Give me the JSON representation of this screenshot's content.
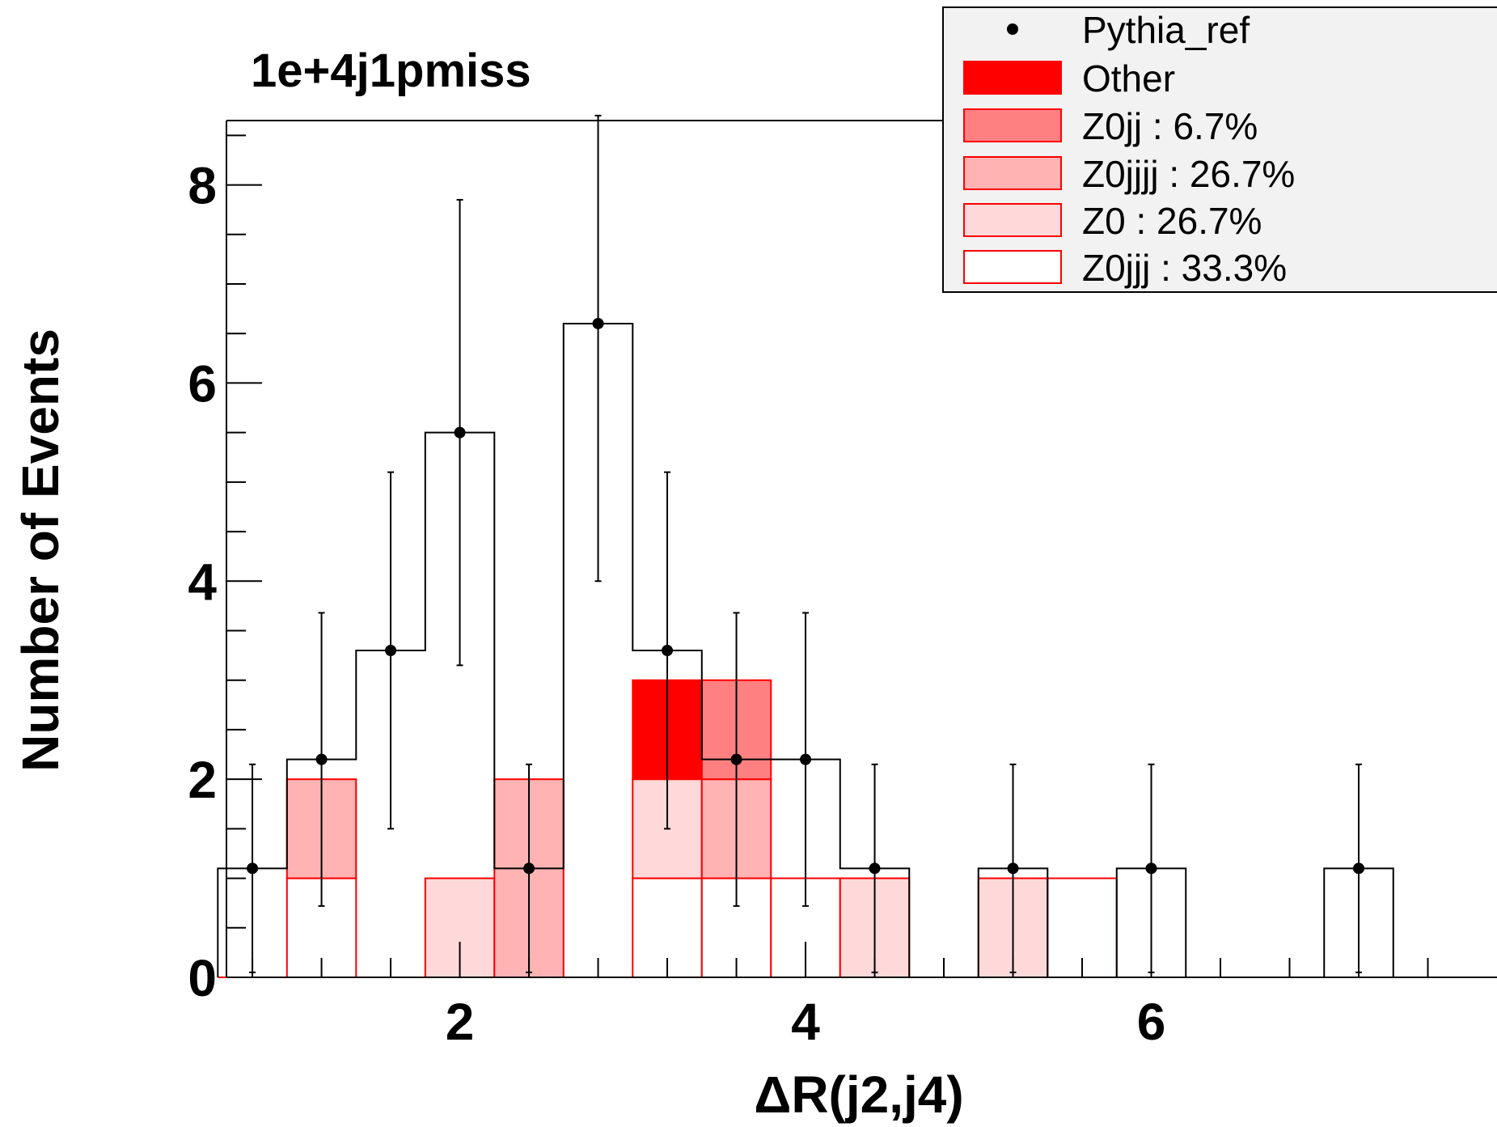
{
  "chart_data": {
    "type": "bar",
    "title": "1e+4j1pmiss",
    "xlabel": "ΔR(j2,j4)",
    "ylabel": "Number of Events",
    "xlim": [
      0.65,
      8.0
    ],
    "ylim": [
      0,
      8.65
    ],
    "x_ticks": [
      2,
      4,
      6
    ],
    "y_ticks": [
      0,
      2,
      4,
      6,
      8
    ],
    "bin_edges": [
      0.6,
      1.0,
      1.4,
      1.8,
      2.2,
      2.6,
      3.0,
      3.4,
      3.8,
      4.2,
      4.6,
      5.0,
      5.4,
      5.8,
      6.2,
      6.6,
      7.0,
      7.4,
      7.8,
      8.2
    ],
    "stack": [
      {
        "name": "Z0jjj : 33.3%",
        "color": "#ffffff",
        "values": [
          0,
          1,
          0,
          0,
          0,
          0,
          1,
          1,
          1,
          0,
          0,
          0,
          1,
          0,
          0,
          0,
          0,
          0,
          0
        ]
      },
      {
        "name": "Z0 : 26.7%",
        "color": "#ffd9d9",
        "values": [
          0,
          0,
          0,
          1,
          0,
          0,
          1,
          0,
          0,
          1,
          0,
          1,
          0,
          0,
          0,
          0,
          0,
          0,
          0
        ]
      },
      {
        "name": "Z0jjjj : 26.7%",
        "color": "#ffb3b3",
        "values": [
          0,
          1,
          0,
          0,
          2,
          0,
          0,
          1,
          0,
          0,
          0,
          0,
          0,
          0,
          0,
          0,
          0,
          0,
          0
        ]
      },
      {
        "name": "Z0jj : 6.7%",
        "color": "#ff8080",
        "values": [
          0,
          0,
          0,
          0,
          0,
          0,
          0,
          1,
          0,
          0,
          0,
          0,
          0,
          0,
          0,
          0,
          0,
          0,
          0
        ]
      },
      {
        "name": "Other",
        "color": "#ff0000",
        "values": [
          0,
          0,
          0,
          0,
          0,
          0,
          1,
          0,
          0,
          0,
          0,
          0,
          0,
          0,
          0,
          0,
          0,
          0,
          0
        ]
      }
    ],
    "reference": {
      "name": "Pythia_ref",
      "values": [
        1.1,
        2.2,
        3.3,
        5.5,
        1.1,
        6.6,
        3.3,
        2.2,
        2.2,
        1.1,
        0,
        1.1,
        0,
        1.1,
        0,
        0,
        1.1,
        0,
        0
      ],
      "err_low": [
        1.05,
        1.48,
        1.8,
        2.35,
        1.05,
        2.6,
        1.8,
        1.48,
        1.48,
        1.05,
        0,
        1.05,
        0,
        1.05,
        0,
        0,
        1.05,
        0,
        0
      ],
      "err_high": [
        1.05,
        1.48,
        1.8,
        2.35,
        1.05,
        2.1,
        1.8,
        1.48,
        1.48,
        1.05,
        0,
        1.05,
        0,
        1.05,
        0,
        0,
        1.05,
        0,
        0
      ]
    },
    "legend": {
      "placement": "top-right",
      "entries": [
        {
          "label": "Pythia_ref",
          "style": "marker",
          "color": "#000000"
        },
        {
          "label": "Other",
          "style": "fill",
          "color": "#ff0000"
        },
        {
          "label": "Z0jj : 6.7%",
          "style": "fill",
          "color": "#ff8080"
        },
        {
          "label": "Z0jjjj : 26.7%",
          "style": "fill",
          "color": "#ffb3b3"
        },
        {
          "label": "Z0 : 26.7%",
          "style": "fill",
          "color": "#ffd9d9"
        },
        {
          "label": "Z0jjj : 33.3%",
          "style": "fill",
          "color": "#ffffff"
        }
      ]
    }
  }
}
